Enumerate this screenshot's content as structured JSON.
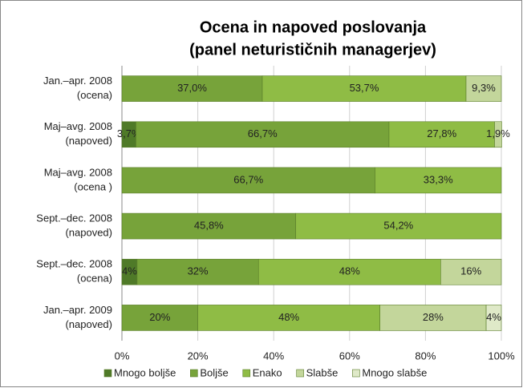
{
  "chart_data": {
    "type": "stacked-bar-horizontal",
    "title": [
      "Ocena in napoved poslovanja",
      "(panel neturističnih managerjev)"
    ],
    "categories": [
      [
        "Jan.–apr. 2008",
        "(ocena)"
      ],
      [
        "Maj–avg. 2008",
        "(napoved)"
      ],
      [
        "Maj–avg. 2008",
        "(ocena )"
      ],
      [
        "Sept.–dec. 2008",
        "(napoved)"
      ],
      [
        "Sept.–dec. 2008",
        "(ocena)"
      ],
      [
        "Jan.–apr. 2009",
        "(napoved)"
      ]
    ],
    "series": [
      {
        "name": "Mnogo boljše",
        "color": "#4f7a28",
        "values": [
          null,
          3.7,
          null,
          null,
          4,
          null
        ],
        "value_labels": [
          null,
          "3,7%",
          null,
          null,
          "4%",
          null
        ]
      },
      {
        "name": "Boljše",
        "color": "#77a33a",
        "values": [
          37.0,
          66.7,
          66.7,
          45.8,
          32,
          20
        ],
        "value_labels": [
          "37,0%",
          "66,7%",
          "66,7%",
          "45,8%",
          "32%",
          "20%"
        ]
      },
      {
        "name": "Enako",
        "color": "#8fbc45",
        "values": [
          53.7,
          27.8,
          33.3,
          54.2,
          48,
          48
        ],
        "value_labels": [
          "53,7%",
          "27,8%",
          "33,3%",
          "54,2%",
          "48%",
          "48%"
        ]
      },
      {
        "name": "Slabše",
        "color": "#c3d69b",
        "values": [
          9.3,
          1.9,
          null,
          null,
          16,
          28
        ],
        "value_labels": [
          "9,3%",
          "1,9%",
          null,
          null,
          "16%",
          "28%"
        ]
      },
      {
        "name": "Mnogo slabše",
        "color": "#dfe9c8",
        "values": [
          null,
          null,
          null,
          null,
          null,
          4
        ],
        "value_labels": [
          null,
          null,
          null,
          null,
          null,
          "4%"
        ]
      }
    ],
    "xlim": [
      0,
      100
    ],
    "xticks": [
      {
        "value": 0,
        "label": "0%"
      },
      {
        "value": 20,
        "label": "20%"
      },
      {
        "value": 40,
        "label": "40%"
      },
      {
        "value": 60,
        "label": "60%"
      },
      {
        "value": 80,
        "label": "80%"
      },
      {
        "value": 100,
        "label": "100%"
      }
    ],
    "grid": true,
    "legend": "bottom"
  }
}
